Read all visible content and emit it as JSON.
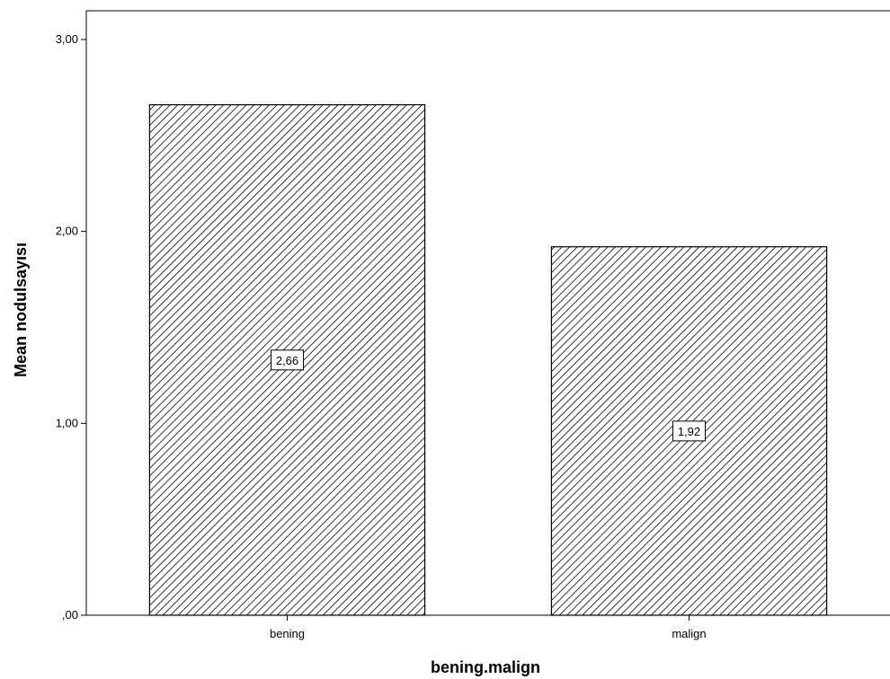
{
  "chart_data": {
    "type": "bar",
    "categories": [
      "bening",
      "malign"
    ],
    "values": [
      2.66,
      1.92
    ],
    "data_labels": [
      "2,66",
      "1,92"
    ],
    "xlabel": "bening.malign",
    "ylabel": "Mean nodulsayısı",
    "ylim": [
      0,
      3.15
    ],
    "yticks": [
      {
        "value": 0,
        "label": ",00"
      },
      {
        "value": 1,
        "label": "1,00"
      },
      {
        "value": 2,
        "label": "2,00"
      },
      {
        "value": 3,
        "label": "3,00"
      }
    ],
    "grid": false,
    "legend": "none",
    "bar_fill_pattern": "diagonal-hatch",
    "colors": {
      "bar_line": "#000000",
      "hatch": "#000000",
      "axis": "#000000",
      "background": "#ffffff"
    }
  }
}
